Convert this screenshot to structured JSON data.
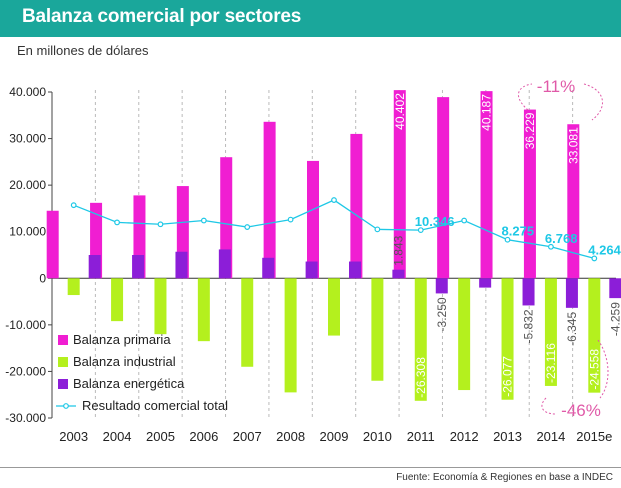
{
  "header": {
    "title": "Balanza comercial por sectores"
  },
  "subtitle": "En millones de dólares",
  "source": {
    "prefix": "Fuente: ",
    "text": "Economía & Regiones en base a INDEC"
  },
  "colors": {
    "header": "#1aa79b",
    "primaria": "#f01ed2",
    "industrial": "#b4f01e",
    "energetica": "#8c1ed8",
    "total": "#1ec8e6",
    "annotation": "#e05aa8"
  },
  "chart_data": {
    "type": "bar",
    "title": "Balanza comercial por sectores",
    "ylabel": "En millones de dólares",
    "ylim": [
      -30000,
      40000
    ],
    "yticks": [
      40000,
      30000,
      20000,
      10000,
      0,
      -10000,
      -20000,
      -30000
    ],
    "ytick_labels": [
      "40.000",
      "30.000",
      "20.000",
      "10.000",
      "0",
      "-10.000",
      "-20.000",
      "-30.000"
    ],
    "categories": [
      "2003",
      "2004",
      "2005",
      "2006",
      "2007",
      "2008",
      "2009",
      "2010",
      "2011",
      "2012",
      "2013",
      "2014",
      "2015e"
    ],
    "series": [
      {
        "name": "Balanza primaria",
        "kind": "bar",
        "values": [
          14500,
          16200,
          17800,
          19800,
          26000,
          33600,
          25200,
          31000,
          40402,
          38900,
          40187,
          36229,
          33081
        ]
      },
      {
        "name": "Balanza industrial",
        "kind": "bar",
        "values": [
          -3600,
          -9200,
          -12000,
          -13500,
          -19000,
          -24500,
          -12300,
          -22000,
          -26308,
          -24000,
          -26077,
          -23116,
          -24558
        ]
      },
      {
        "name": "Balanza energética",
        "kind": "bar",
        "values": [
          5000,
          5000,
          5700,
          6200,
          4400,
          3600,
          3600,
          1843,
          -3250,
          -2000,
          -5832,
          -6345,
          -4259
        ]
      },
      {
        "name": "Resultado comercial total",
        "kind": "line",
        "values": [
          15700,
          12000,
          11600,
          12400,
          11000,
          12600,
          16800,
          10500,
          10346,
          12400,
          8275,
          6768,
          4264
        ]
      }
    ],
    "data_labels": [
      {
        "series": 0,
        "index": 8,
        "text": "40.402"
      },
      {
        "series": 0,
        "index": 10,
        "text": "40.187"
      },
      {
        "series": 0,
        "index": 11,
        "text": "36.229"
      },
      {
        "series": 0,
        "index": 12,
        "text": "33.081"
      },
      {
        "series": 1,
        "index": 8,
        "text": "-26.308"
      },
      {
        "series": 1,
        "index": 10,
        "text": "-26.077"
      },
      {
        "series": 1,
        "index": 11,
        "text": "-23.116"
      },
      {
        "series": 1,
        "index": 12,
        "text": "-24.558"
      },
      {
        "series": 2,
        "index": 7,
        "text": "1.843"
      },
      {
        "series": 2,
        "index": 8,
        "text": "-3.250"
      },
      {
        "series": 2,
        "index": 10,
        "text": "-5.832"
      },
      {
        "series": 2,
        "index": 11,
        "text": "-6.345"
      },
      {
        "series": 2,
        "index": 12,
        "text": "-4.259"
      },
      {
        "series": 3,
        "index": 8,
        "text": "10.346"
      },
      {
        "series": 3,
        "index": 10,
        "text": "8.275"
      },
      {
        "series": 3,
        "index": 11,
        "text": "6.768"
      },
      {
        "series": 3,
        "index": 12,
        "text": "4.264"
      }
    ],
    "annotations": {
      "top": "-11%",
      "bottom": "-46%"
    },
    "legend": {
      "placement": "bottom-left",
      "entries": [
        "Balanza primaria",
        "Balanza industrial",
        "Balanza energética",
        "Resultado comercial total"
      ]
    },
    "grid": {
      "vertical_dashed": true,
      "horizontal": false
    }
  }
}
